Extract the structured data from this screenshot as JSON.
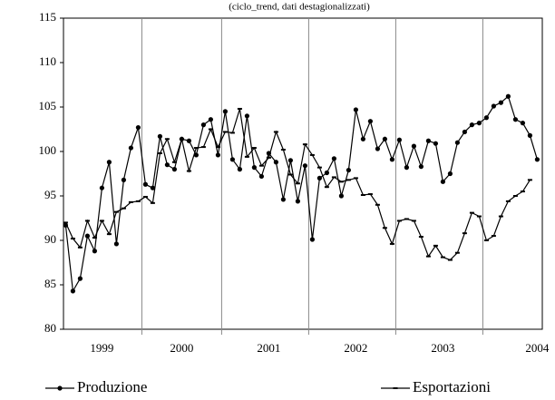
{
  "chart_data": {
    "type": "line",
    "subtitle": "(ciclo_trend, dati destagionalizzati)",
    "categories": [
      null,
      null,
      null,
      null,
      null,
      "1999",
      null,
      null,
      null,
      null,
      null,
      null,
      null,
      null,
      null,
      null,
      "2000",
      null,
      null,
      null,
      null,
      null,
      null,
      null,
      null,
      null,
      null,
      null,
      "2001",
      null,
      null,
      null,
      null,
      null,
      null,
      null,
      null,
      null,
      null,
      null,
      "2002",
      null,
      null,
      null,
      null,
      null,
      null,
      null,
      null,
      null,
      null,
      null,
      "2003",
      null,
      null,
      null,
      null,
      null,
      null,
      null,
      null,
      null,
      null,
      null,
      null,
      "2004"
    ],
    "series": [
      {
        "name": "Produzione",
        "color": "#000000",
        "marker": "circle",
        "values": [
          91.7,
          84.3,
          85.7,
          90.5,
          88.8,
          95.9,
          98.8,
          89.6,
          96.8,
          100.4,
          102.7,
          96.3,
          95.9,
          101.7,
          98.5,
          98.0,
          101.4,
          101.2,
          99.6,
          103.0,
          103.6,
          99.6,
          104.5,
          99.1,
          98.0,
          104.0,
          98.2,
          97.2,
          99.8,
          98.8,
          94.6,
          99.0,
          94.4,
          98.4,
          90.1,
          97.0,
          97.6,
          99.2,
          95.0,
          97.9,
          104.7,
          101.4,
          103.4,
          100.3,
          101.4,
          99.1,
          101.3,
          98.2,
          100.6,
          98.3,
          101.2,
          100.9,
          96.6,
          97.5,
          101.0,
          102.2,
          103.0,
          103.2,
          103.8,
          105.1,
          105.5,
          106.2,
          103.6,
          103.2,
          101.8,
          99.1
        ]
      },
      {
        "name": "Esportazioni",
        "color": "#000000",
        "marker": "dash",
        "values": [
          92.0,
          90.2,
          89.2,
          92.2,
          90.3,
          92.2,
          90.7,
          93.2,
          93.6,
          94.3,
          94.4,
          94.9,
          94.2,
          99.8,
          101.4,
          98.8,
          101.4,
          97.8,
          100.4,
          100.5,
          102.5,
          100.5,
          102.2,
          102.1,
          104.8,
          99.4,
          100.4,
          98.4,
          99.3,
          102.2,
          100.2,
          97.4,
          96.4,
          100.8,
          99.6,
          98.2,
          96.0,
          97.1,
          96.6,
          96.8,
          97.0,
          95.1,
          95.2,
          94.0,
          91.4,
          89.6,
          92.2,
          92.4,
          92.2,
          90.4,
          88.2,
          89.4,
          88.1,
          87.8,
          88.6,
          90.8,
          93.1,
          92.7,
          90.0,
          90.5,
          92.7,
          94.4,
          95.0,
          95.5,
          96.8,
          null
        ]
      }
    ],
    "ylim": [
      80,
      115
    ],
    "yticks": [
      80,
      85,
      90,
      95,
      100,
      105,
      110,
      115
    ],
    "legend": "bottom"
  }
}
